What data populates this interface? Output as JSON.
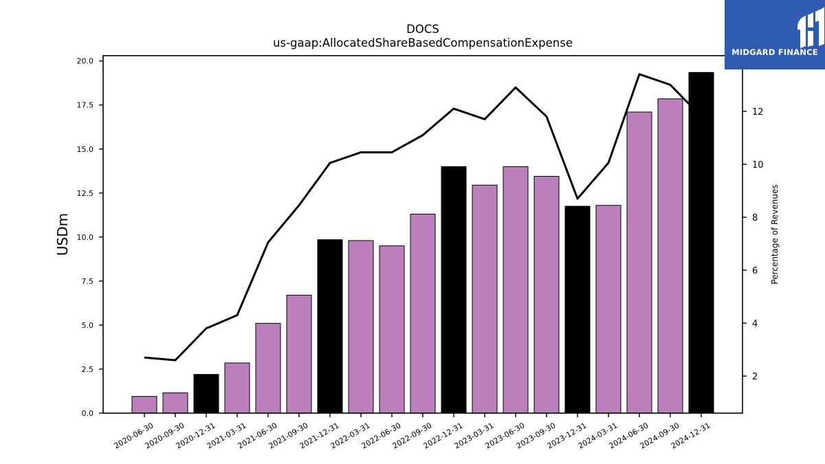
{
  "chart_data": {
    "type": "bar",
    "title": "DOCS",
    "subtitle": "us-gaap:AllocatedShareBasedCompensationExpense",
    "ylabel": "USDm",
    "y2label": "Percentage of Revenues",
    "ylim": [
      0,
      20.3
    ],
    "y2lim": [
      0.6,
      14.1
    ],
    "yticks": [
      "0.0",
      "2.5",
      "5.0",
      "7.5",
      "10.0",
      "12.5",
      "15.0",
      "17.5",
      "20.0"
    ],
    "y2ticks": [
      "2",
      "4",
      "6",
      "8",
      "10",
      "12"
    ],
    "categories": [
      "2020-06-30",
      "2020-09-30",
      "2020-12-31",
      "2021-03-31",
      "2021-06-30",
      "2021-09-30",
      "2021-12-31",
      "2022-03-31",
      "2022-06-30",
      "2022-09-30",
      "2022-12-31",
      "2023-03-31",
      "2023-06-30",
      "2023-09-30",
      "2023-12-31",
      "2024-03-31",
      "2024-06-30",
      "2024-09-30",
      "2024-12-31"
    ],
    "series": [
      {
        "kind": "bar",
        "axis": "left",
        "values": [
          0.95,
          1.15,
          2.2,
          2.85,
          5.1,
          6.7,
          9.85,
          9.8,
          9.5,
          11.3,
          14.0,
          12.95,
          14.0,
          13.45,
          11.75,
          11.8,
          17.1,
          17.85,
          19.35
        ],
        "colors": [
          "#bb7fbd",
          "#bb7fbd",
          "#000000",
          "#bb7fbd",
          "#bb7fbd",
          "#bb7fbd",
          "#000000",
          "#bb7fbd",
          "#bb7fbd",
          "#bb7fbd",
          "#000000",
          "#bb7fbd",
          "#bb7fbd",
          "#bb7fbd",
          "#000000",
          "#bb7fbd",
          "#bb7fbd",
          "#bb7fbd",
          "#000000"
        ]
      },
      {
        "kind": "line",
        "axis": "right",
        "values": [
          2.7,
          2.6,
          3.8,
          4.3,
          7.05,
          8.45,
          10.05,
          10.45,
          10.45,
          11.1,
          12.1,
          11.7,
          12.9,
          11.8,
          8.7,
          10.05,
          13.4,
          13.0,
          11.8
        ],
        "color": "#000000"
      }
    ],
    "grid": false,
    "legend": "none"
  },
  "branding": {
    "logo_text": "MIDGARD FINANCE",
    "logo_color": "#2f5bb0"
  }
}
